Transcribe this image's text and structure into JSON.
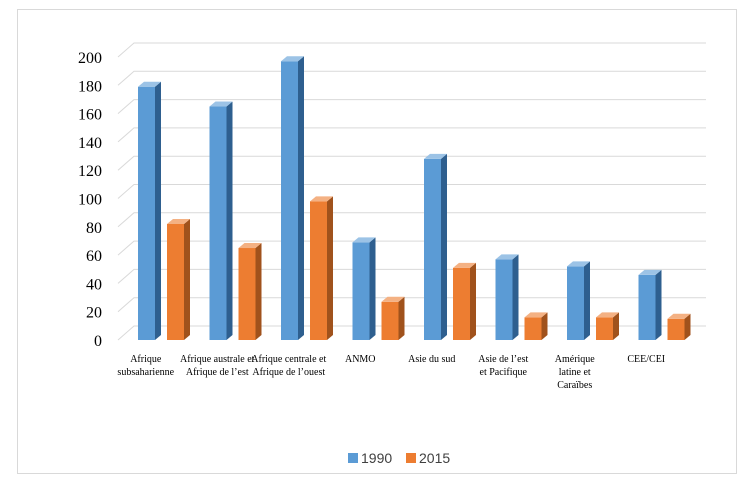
{
  "chart_data": {
    "type": "bar",
    "title": "",
    "xlabel": "",
    "ylabel": "",
    "ylim": [
      0,
      200
    ],
    "yticks": [
      0,
      20,
      40,
      60,
      80,
      100,
      120,
      140,
      160,
      180,
      200
    ],
    "grid": true,
    "legend_position": "bottom",
    "categories": [
      [
        "Afrique",
        "subsaharienne"
      ],
      [
        "Afrique australe et",
        "Afrique de l’est"
      ],
      [
        "Afrique centrale et",
        "Afrique de l’ouest"
      ],
      [
        "ANMO"
      ],
      [
        "Asie du sud"
      ],
      [
        "Asie de l’est",
        "et Pacifique"
      ],
      [
        "Amérique",
        "latine et",
        "Caraïbes"
      ],
      [
        "CEE/CEI"
      ]
    ],
    "series": [
      {
        "name": "1990",
        "color": "#5b9bd5",
        "side_color": "#2e5f8f",
        "top_color": "#9cc3e6",
        "values": [
          179,
          165,
          197,
          69,
          128,
          57,
          52,
          46
        ]
      },
      {
        "name": "2015",
        "color": "#ed7d31",
        "side_color": "#a0521c",
        "top_color": "#f4b183",
        "values": [
          82,
          65,
          98,
          27,
          51,
          16,
          16,
          15
        ]
      }
    ]
  }
}
